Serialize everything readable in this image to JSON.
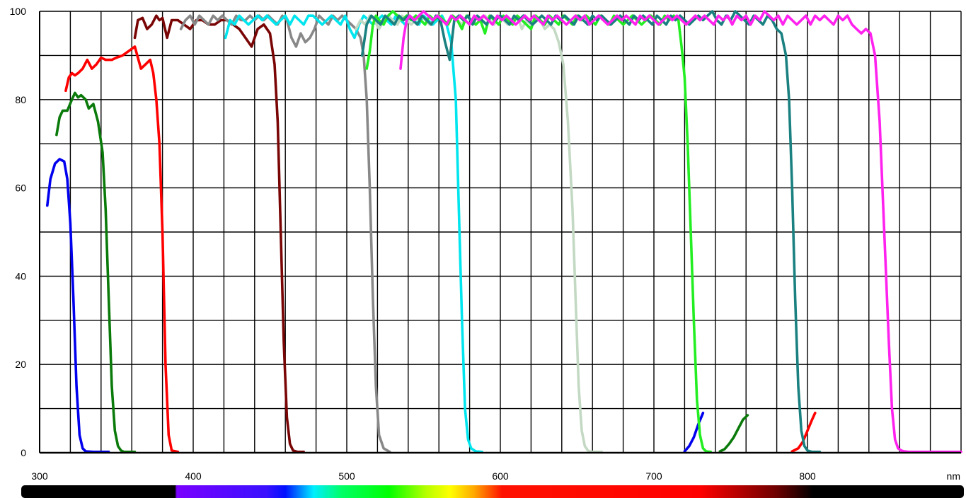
{
  "chart_data": {
    "type": "line",
    "title": "",
    "xlabel": "nm",
    "ylabel": "",
    "xlim": [
      300,
      900
    ],
    "ylim": [
      0,
      100
    ],
    "x_ticks": [
      300,
      400,
      500,
      600,
      700,
      800
    ],
    "x_tick_labels": [
      "300",
      "400",
      "500",
      "600",
      "700",
      "800"
    ],
    "x_unit_label": "nm",
    "y_ticks": [
      0,
      20,
      40,
      60,
      80,
      100
    ],
    "y_tick_labels": [
      "0",
      "20",
      "40",
      "60",
      "80",
      "100"
    ],
    "grid": true,
    "legend": "none",
    "series": [
      {
        "color": "#0000ee",
        "x": [
          305,
          307,
          310,
          313,
          316,
          318,
          320,
          322,
          324,
          326,
          328,
          330,
          335,
          340,
          345
        ],
        "y": [
          56,
          62,
          65.5,
          66.5,
          66,
          62,
          52,
          35,
          15,
          4,
          1,
          0.3,
          0.2,
          0.2,
          0.2
        ]
      },
      {
        "color": "#0000ee",
        "x": [
          720,
          723,
          726,
          729,
          732
        ],
        "y": [
          0.3,
          1.5,
          3.5,
          6.5,
          9
        ]
      },
      {
        "color": "#0a7a0a",
        "x": [
          311,
          313,
          315,
          318,
          321,
          323,
          325,
          327,
          330,
          332,
          335,
          338,
          341,
          343,
          345,
          347,
          349,
          351,
          353,
          355,
          358,
          362
        ],
        "y": [
          72,
          76,
          77.5,
          77.5,
          80,
          81.5,
          80.5,
          81,
          80,
          78,
          79,
          75,
          68,
          55,
          35,
          15,
          5,
          1.5,
          0.5,
          0.2,
          0.2,
          0.2
        ]
      },
      {
        "color": "#0a7a0a",
        "x": [
          743,
          746,
          749,
          752,
          755,
          758,
          761
        ],
        "y": [
          0.3,
          0.8,
          2,
          3.5,
          5.5,
          7.5,
          8.5
        ]
      },
      {
        "color": "#ff0000",
        "x": [
          317,
          319,
          321,
          323,
          325,
          328,
          331,
          334,
          337,
          340,
          343,
          347,
          350,
          354,
          358,
          362,
          366,
          369,
          372,
          374,
          376,
          378,
          380,
          382,
          384,
          386,
          390
        ],
        "y": [
          82,
          85,
          86,
          85.5,
          86,
          87,
          89,
          87,
          88,
          89.5,
          89,
          89,
          89.5,
          90,
          91,
          92,
          87,
          88,
          89,
          86,
          80,
          70,
          50,
          20,
          4,
          0.5,
          0.2
        ]
      },
      {
        "color": "#ff0000",
        "x": [
          790,
          794,
          797,
          800,
          803,
          805
        ],
        "y": [
          0.3,
          1,
          2.5,
          5,
          7.5,
          9
        ]
      },
      {
        "color": "#7a0505",
        "x": [
          362,
          364,
          367,
          370,
          373,
          376,
          378,
          380,
          383,
          386,
          390,
          394,
          398,
          402,
          406,
          410,
          414,
          418,
          422,
          426,
          430,
          434,
          438,
          442,
          446,
          450,
          453,
          455,
          457,
          459,
          461,
          463,
          465,
          468,
          472
        ],
        "y": [
          94,
          98,
          98.5,
          96,
          97,
          99,
          98,
          98.5,
          94,
          98,
          98,
          97,
          96,
          98,
          98,
          97,
          97,
          98,
          98,
          97,
          96,
          94,
          92,
          96,
          97,
          95,
          88,
          75,
          50,
          25,
          8,
          2,
          0.5,
          0.2,
          0.2
        ]
      },
      {
        "color": "#888888",
        "x": [
          392,
          395,
          398,
          401,
          404,
          407,
          410,
          413,
          416,
          419,
          422,
          425,
          428,
          431,
          434,
          437,
          440,
          443,
          446,
          449,
          452,
          455,
          458,
          461,
          464,
          467,
          470,
          473,
          476,
          479,
          482,
          485,
          488,
          491,
          494,
          497,
          500,
          503,
          506,
          509,
          511,
          513,
          515,
          517,
          519,
          521,
          524,
          528
        ],
        "y": [
          96,
          98,
          99,
          97,
          99,
          98,
          97,
          99,
          98,
          99,
          98,
          97,
          99,
          98,
          98,
          99,
          98,
          99,
          98,
          99,
          98,
          97,
          99,
          98,
          94,
          92,
          95,
          93,
          94,
          96,
          99,
          98,
          97,
          99,
          98,
          99,
          98,
          97,
          96,
          94,
          90,
          80,
          60,
          35,
          15,
          4,
          1,
          0.2
        ]
      },
      {
        "color": "#00e5ee",
        "x": [
          421,
          424,
          427,
          430,
          433,
          436,
          439,
          442,
          445,
          448,
          451,
          454,
          457,
          460,
          463,
          466,
          469,
          472,
          475,
          478,
          481,
          484,
          487,
          490,
          493,
          496,
          499,
          502,
          505,
          508,
          511,
          514,
          517,
          520,
          523,
          526,
          529,
          532,
          535,
          538,
          541,
          544,
          547,
          550,
          553,
          556,
          559,
          562,
          565,
          568,
          571,
          573,
          575,
          577,
          579,
          581,
          584,
          588
        ],
        "y": [
          94,
          98,
          97,
          99,
          98,
          97,
          98,
          99,
          98,
          99,
          98,
          97,
          98,
          99,
          97,
          99,
          98,
          97,
          99,
          99,
          98,
          97,
          98,
          99,
          98,
          97,
          99,
          96,
          94,
          97,
          99,
          98,
          97,
          98,
          99,
          98,
          97,
          99,
          98,
          97,
          99,
          98,
          97,
          99,
          98,
          97,
          98,
          99,
          97,
          93,
          80,
          55,
          30,
          10,
          3,
          1,
          0.3,
          0.2
        ]
      },
      {
        "color": "#c3d9c3",
        "x": [
          506,
          509,
          512,
          515,
          518,
          521,
          524,
          527,
          530,
          533,
          536,
          539,
          542,
          545,
          548,
          551,
          554,
          557,
          560,
          563,
          566,
          569,
          572,
          575,
          578,
          581,
          584,
          587,
          590,
          593,
          596,
          599,
          602,
          605,
          608,
          611,
          614,
          617,
          620,
          623,
          626,
          629,
          632,
          635,
          638,
          641,
          644,
          647,
          649,
          651,
          653,
          655,
          657,
          659,
          662,
          666
        ],
        "y": [
          96,
          98,
          97,
          99,
          98,
          96,
          98,
          99,
          98,
          97,
          99,
          98,
          97,
          98,
          99,
          98,
          97,
          98,
          99,
          98,
          97,
          99,
          98,
          97,
          99,
          98,
          97,
          98,
          99,
          98,
          97,
          99,
          98,
          97,
          98,
          99,
          96,
          98,
          97,
          99,
          98,
          96,
          97,
          96,
          93,
          88,
          75,
          55,
          35,
          15,
          5,
          1.5,
          0.5,
          0.2,
          0.2,
          0.2
        ]
      },
      {
        "color": "#22ee22",
        "x": [
          513,
          515,
          517,
          519,
          521,
          524,
          527,
          530,
          533,
          536,
          539,
          542,
          545,
          548,
          551,
          554,
          557,
          560,
          563,
          566,
          569,
          572,
          575,
          578,
          581,
          584,
          587,
          590,
          593,
          596,
          599,
          602,
          605,
          608,
          611,
          614,
          617,
          620,
          623,
          626,
          629,
          632,
          635,
          638,
          641,
          644,
          647,
          650,
          653,
          656,
          659,
          662,
          665,
          668,
          671,
          674,
          677,
          680,
          683,
          686,
          689,
          692,
          695,
          698,
          701,
          704,
          707,
          710,
          713,
          716,
          718,
          720,
          722,
          724,
          726,
          728,
          730,
          732,
          734,
          737
        ],
        "y": [
          87,
          91,
          97,
          99,
          98,
          97,
          99,
          100,
          99,
          98,
          99,
          98,
          99,
          98,
          97,
          99,
          98,
          99,
          98,
          97,
          99,
          98,
          96,
          99,
          98,
          97,
          98,
          95,
          99,
          98,
          97,
          99,
          98,
          97,
          99,
          98,
          97,
          96,
          99,
          98,
          97,
          99,
          98,
          97,
          99,
          98,
          97,
          99,
          98,
          99,
          98,
          97,
          99,
          98,
          97,
          99,
          98,
          97,
          98,
          99,
          98,
          97,
          98,
          99,
          98,
          97,
          99,
          98,
          99,
          98,
          92,
          85,
          70,
          50,
          30,
          12,
          4,
          1,
          0.3,
          0.2
        ]
      },
      {
        "color": "#1a8080",
        "x": [
          510,
          513,
          516,
          519,
          522,
          525,
          528,
          531,
          534,
          537,
          540,
          543,
          546,
          549,
          552,
          555,
          558,
          561,
          564,
          567,
          570,
          573,
          576,
          579,
          582,
          585,
          588,
          591,
          594,
          597,
          600,
          603,
          606,
          609,
          612,
          615,
          618,
          621,
          624,
          627,
          630,
          633,
          636,
          639,
          642,
          645,
          648,
          651,
          654,
          657,
          660,
          663,
          666,
          669,
          672,
          675,
          678,
          681,
          684,
          687,
          690,
          693,
          696,
          699,
          702,
          705,
          708,
          711,
          714,
          717,
          720,
          723,
          726,
          729,
          732,
          735,
          738,
          741,
          744,
          747,
          750,
          753,
          756,
          759,
          762,
          765,
          768,
          771,
          774,
          777,
          780,
          783,
          786,
          788,
          790,
          792,
          794,
          796,
          798,
          800,
          803,
          808
        ],
        "y": [
          90,
          97,
          99,
          98,
          97,
          99,
          98,
          97,
          99,
          98,
          99,
          98,
          97,
          99,
          98,
          97,
          99,
          98,
          93,
          89,
          98,
          99,
          98,
          99,
          97,
          99,
          98,
          97,
          99,
          98,
          99,
          98,
          97,
          99,
          98,
          99,
          98,
          97,
          98,
          99,
          98,
          97,
          99,
          98,
          99,
          98,
          97,
          99,
          98,
          97,
          99,
          98,
          99,
          98,
          97,
          98,
          99,
          98,
          97,
          99,
          98,
          99,
          98,
          97,
          99,
          98,
          97,
          99,
          98,
          99,
          98,
          97,
          98,
          99,
          98,
          99,
          100,
          98,
          97,
          99,
          98,
          100,
          99,
          98,
          97,
          99,
          98,
          97,
          99,
          98,
          96,
          95,
          90,
          80,
          60,
          35,
          15,
          5,
          1.5,
          0.5,
          0.2,
          0.2
        ]
      },
      {
        "color": "#ff22ee",
        "x": [
          535,
          537,
          539,
          541,
          544,
          547,
          550,
          553,
          556,
          559,
          562,
          565,
          568,
          571,
          574,
          577,
          580,
          583,
          586,
          589,
          592,
          595,
          598,
          601,
          604,
          607,
          610,
          613,
          616,
          619,
          622,
          625,
          628,
          631,
          634,
          637,
          640,
          643,
          646,
          649,
          652,
          655,
          658,
          661,
          664,
          667,
          670,
          673,
          676,
          679,
          682,
          685,
          688,
          691,
          694,
          697,
          700,
          703,
          706,
          709,
          712,
          715,
          718,
          721,
          724,
          727,
          730,
          733,
          736,
          739,
          742,
          745,
          748,
          751,
          754,
          757,
          760,
          763,
          766,
          769,
          772,
          775,
          778,
          781,
          784,
          787,
          790,
          793,
          796,
          799,
          802,
          805,
          808,
          811,
          814,
          817,
          820,
          823,
          826,
          829,
          832,
          835,
          838,
          841,
          844,
          847,
          850,
          853,
          855,
          857,
          859,
          861,
          863,
          866,
          870,
          880,
          890,
          900
        ],
        "y": [
          87,
          94,
          98,
          99,
          98,
          99,
          100,
          99,
          98,
          99,
          98,
          97,
          99,
          98,
          99,
          98,
          97,
          99,
          98,
          99,
          98,
          97,
          99,
          98,
          99,
          98,
          97,
          98,
          99,
          98,
          99,
          98,
          97,
          99,
          98,
          99,
          98,
          97,
          98,
          99,
          98,
          99,
          97,
          98,
          99,
          98,
          97,
          98,
          99,
          98,
          99,
          98,
          97,
          99,
          98,
          99,
          98,
          97,
          98,
          99,
          98,
          99,
          98,
          97,
          98,
          99,
          98,
          99,
          98,
          97,
          99,
          98,
          99,
          97,
          99,
          98,
          99,
          97,
          99,
          98,
          100,
          99,
          98,
          99,
          97,
          99,
          98,
          97,
          98,
          99,
          97,
          99,
          98,
          99,
          98,
          97,
          99,
          98,
          99,
          97,
          96,
          95,
          96,
          95,
          90,
          75,
          50,
          25,
          10,
          3,
          1,
          0.5,
          0.3,
          0.2,
          0.2,
          0.2,
          0.2,
          0.2
        ]
      }
    ]
  }
}
